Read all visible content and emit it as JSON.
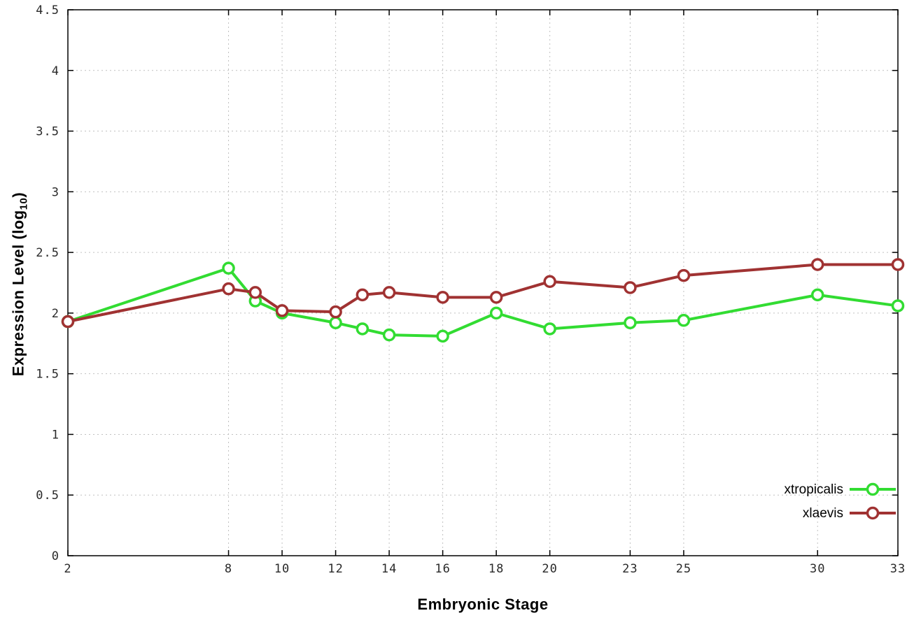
{
  "page": {
    "background": "#ffffff",
    "border_color": "#000000",
    "grid_color": "#c0c0c0",
    "tick_label_color": "#2a2a2a"
  },
  "axis_titles": {
    "xlabel": "Embryonic Stage",
    "ylabel_main": "Expression Level (log",
    "ylabel_sub": "10",
    "ylabel_close": ")"
  },
  "chart_data": {
    "type": "line",
    "title": "",
    "xlabel": "Embryonic Stage",
    "ylabel": "Expression Level (log_10)",
    "xlim": [
      2,
      33
    ],
    "ylim": [
      0,
      4.5
    ],
    "y_tick_step": 0.5,
    "x_ticks": [
      2,
      8,
      10,
      12,
      14,
      16,
      18,
      20,
      23,
      25,
      30,
      33
    ],
    "grid": true,
    "legend_position": "bottom-right",
    "x": [
      2,
      8,
      9,
      10,
      12,
      13,
      14,
      16,
      18,
      20,
      23,
      25,
      30,
      33
    ],
    "series": [
      {
        "name": "xtropicalis",
        "color": "#32dc32",
        "values": [
          1.93,
          2.37,
          2.1,
          2.0,
          1.92,
          1.87,
          1.82,
          1.81,
          2.0,
          1.87,
          1.92,
          1.94,
          2.15,
          2.06
        ]
      },
      {
        "name": "xlaevis",
        "color": "#a03232",
        "values": [
          1.93,
          2.2,
          2.17,
          2.02,
          2.01,
          2.15,
          2.17,
          2.13,
          2.13,
          2.26,
          2.21,
          2.31,
          2.4,
          2.4
        ]
      }
    ]
  }
}
